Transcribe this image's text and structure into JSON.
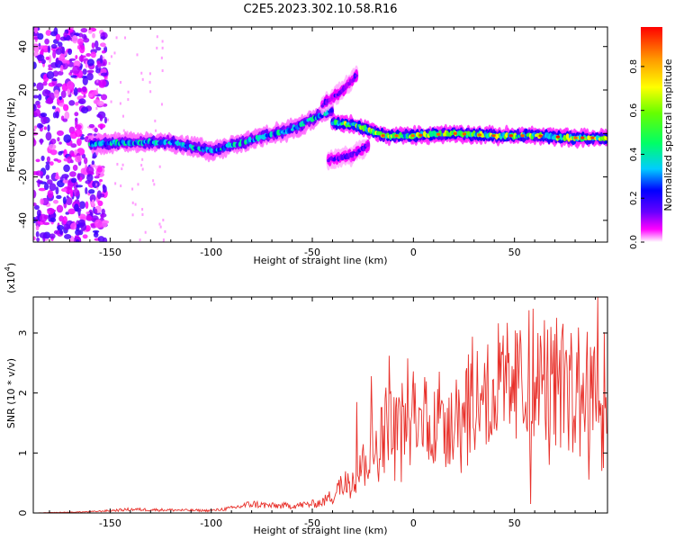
{
  "figure": {
    "title": "C2E5.2023.302.10.58.R16"
  },
  "chart_data": [
    {
      "type": "heatmap",
      "name": "spectrogram",
      "xlabel": "Height of straight line (km)",
      "ylabel": "Frequency (Hz)",
      "xlim": [
        -188,
        96
      ],
      "ylim": [
        -50,
        49
      ],
      "x_ticks": [
        -150,
        -100,
        -50,
        0,
        50
      ],
      "y_ticks": [
        -40,
        -20,
        0,
        20,
        40
      ],
      "colorbar": {
        "label": "Normalized spectral amplitude",
        "range": [
          0,
          0.98
        ],
        "ticks": [
          0.0,
          0.2,
          0.4,
          0.6,
          0.8
        ],
        "colormap": [
          "#ffffff",
          "#ff00ff",
          "#6600ff",
          "#0000ff",
          "#00ccff",
          "#00ff66",
          "#66ff00",
          "#ffff00",
          "#ff9900",
          "#ff0000"
        ]
      },
      "features": [
        {
          "kind": "broadband-noise",
          "x_range": [
            -188,
            -158
          ],
          "y_range": [
            -50,
            49
          ],
          "amplitude": 0.25
        },
        {
          "kind": "main-trace",
          "points": [
            [
              -160,
              -5
            ],
            [
              -140,
              -4
            ],
            [
              -120,
              -4
            ],
            [
              -100,
              -8
            ],
            [
              -80,
              -3
            ],
            [
              -60,
              2
            ],
            [
              -45,
              9
            ],
            [
              -40,
              11
            ]
          ],
          "amplitude": 0.55
        },
        {
          "kind": "upper-branch",
          "points": [
            [
              -45,
              13
            ],
            [
              -35,
              20
            ],
            [
              -28,
              27
            ]
          ],
          "amplitude": 0.3
        },
        {
          "kind": "lower-branch",
          "points": [
            [
              -42,
              -12
            ],
            [
              -30,
              -10
            ],
            [
              -22,
              -5
            ]
          ],
          "amplitude": 0.3
        },
        {
          "kind": "second-trace",
          "points": [
            [
              -40,
              5
            ],
            [
              -30,
              4
            ],
            [
              -20,
              1
            ],
            [
              -15,
              -1
            ],
            [
              0,
              -1
            ],
            [
              20,
              0
            ],
            [
              40,
              -1
            ],
            [
              60,
              -1
            ],
            [
              80,
              -2
            ],
            [
              96,
              -2
            ]
          ],
          "amplitude": 0.8
        }
      ]
    },
    {
      "type": "line",
      "name": "snr",
      "xlabel": "Height of straight line (km)",
      "ylabel": "SNR (10 * v/v)",
      "scale_label": "(x10",
      "scale_exponent": "4",
      "xlim": [
        -188,
        96
      ],
      "ylim": [
        0,
        3.6
      ],
      "x_ticks": [
        -150,
        -100,
        -50,
        0,
        50
      ],
      "y_ticks": [
        0,
        1,
        2,
        3
      ],
      "color": "#e8302a",
      "envelope_x": [
        -188,
        -160,
        -140,
        -120,
        -100,
        -90,
        -80,
        -70,
        -60,
        -50,
        -45,
        -40,
        -35,
        -30,
        -25,
        -20,
        -15,
        -10,
        -5,
        0,
        10,
        20,
        30,
        40,
        50,
        60,
        70,
        80,
        90,
        96
      ],
      "envelope_y": [
        0.0,
        0.02,
        0.06,
        0.05,
        0.04,
        0.08,
        0.15,
        0.12,
        0.12,
        0.15,
        0.18,
        0.3,
        0.5,
        0.7,
        0.85,
        1.1,
        1.3,
        1.5,
        1.5,
        1.55,
        1.55,
        1.65,
        1.9,
        2.0,
        2.05,
        2.05,
        2.05,
        2.05,
        2.0,
        2.0
      ],
      "spikes": [
        [
          -28,
          1.85
        ],
        [
          -21,
          2.28
        ],
        [
          -12,
          2.62
        ],
        [
          -7,
          1.85
        ],
        [
          35,
          2.5
        ],
        [
          51,
          3.0
        ],
        [
          57,
          3.38
        ],
        [
          58,
          0.15
        ],
        [
          63,
          2.75
        ],
        [
          68,
          3.1
        ],
        [
          78,
          3.0
        ],
        [
          82,
          2.6
        ],
        [
          86,
          3.02
        ],
        [
          91,
          3.6
        ],
        [
          93,
          0.7
        ],
        [
          94,
          0.75
        ]
      ]
    }
  ]
}
